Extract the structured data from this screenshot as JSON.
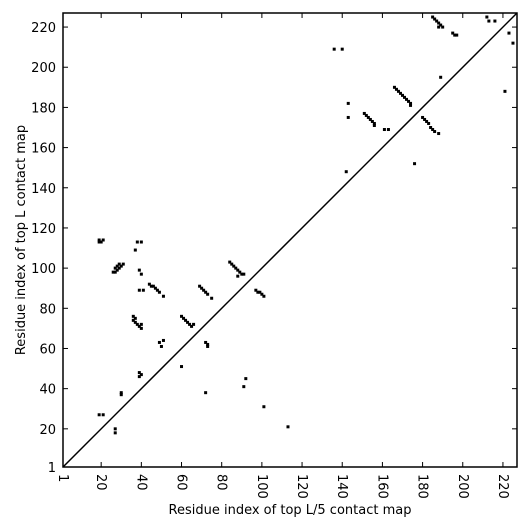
{
  "chart_data": {
    "type": "scatter",
    "xlabel": "Residue index of top L/5 contact map",
    "ylabel": "Residue index of top L contact map",
    "xlim": [
      1,
      227
    ],
    "ylim": [
      1,
      227
    ],
    "xticks": [
      1,
      20,
      40,
      60,
      80,
      100,
      120,
      140,
      160,
      180,
      200,
      220
    ],
    "yticks": [
      1,
      20,
      40,
      60,
      80,
      100,
      120,
      140,
      160,
      180,
      200,
      220
    ],
    "color": "#000000",
    "x": [
      19,
      20,
      21,
      19,
      27,
      28,
      28,
      29,
      30,
      31,
      27,
      26,
      29,
      38,
      40,
      37,
      39,
      40,
      36,
      36,
      37,
      38,
      39,
      40,
      40,
      37,
      39,
      41,
      44,
      45,
      46,
      47,
      48,
      49,
      51,
      39,
      40,
      39,
      49,
      50,
      51,
      30,
      30,
      19,
      21,
      27,
      27,
      60,
      61,
      62,
      63,
      64,
      65,
      66,
      60,
      69,
      70,
      71,
      72,
      73,
      75,
      72,
      73,
      73,
      72,
      84,
      85,
      86,
      87,
      88,
      89,
      90,
      91,
      88,
      91,
      92,
      97,
      98,
      99,
      100,
      101,
      101,
      113,
      136,
      140,
      143,
      143,
      142,
      151,
      152,
      153,
      154,
      155,
      156,
      156,
      161,
      163,
      166,
      167,
      168,
      169,
      170,
      171,
      172,
      173,
      174,
      174,
      180,
      181,
      182,
      183,
      184,
      185,
      186,
      188,
      176,
      189,
      185,
      186,
      187,
      188,
      189,
      190,
      188,
      195,
      196,
      197,
      212,
      213,
      216,
      221,
      223,
      225
    ],
    "y": [
      114,
      113,
      114,
      113,
      98,
      99,
      101,
      102,
      101,
      102,
      100,
      98,
      100,
      113,
      113,
      109,
      99,
      97,
      76,
      74,
      73,
      72,
      71,
      70,
      72,
      75,
      89,
      89,
      92,
      91,
      91,
      90,
      89,
      88,
      86,
      48,
      47,
      46,
      63,
      61,
      64,
      38,
      37,
      27,
      27,
      20,
      18,
      76,
      75,
      74,
      73,
      72,
      71,
      72,
      51,
      91,
      90,
      89,
      88,
      87,
      85,
      63,
      62,
      61,
      38,
      103,
      102,
      101,
      100,
      99,
      98,
      97,
      97,
      96,
      41,
      45,
      89,
      88,
      88,
      87,
      86,
      31,
      21,
      209,
      209,
      182,
      175,
      148,
      177,
      176,
      175,
      174,
      173,
      172,
      171,
      169,
      169,
      190,
      189,
      188,
      187,
      186,
      185,
      184,
      183,
      182,
      181,
      175,
      174,
      173,
      172,
      170,
      169,
      168,
      167,
      152,
      195,
      225,
      224,
      223,
      222,
      221,
      220,
      220,
      217,
      216,
      216,
      225,
      223,
      223,
      188,
      217,
      212
    ]
  }
}
